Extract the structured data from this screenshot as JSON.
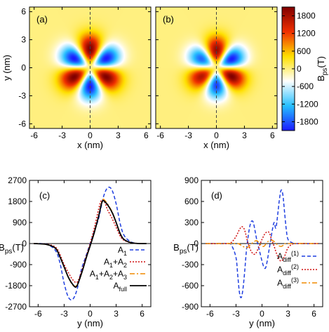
{
  "chart_data": [
    {
      "type": "heatmap",
      "panel_label": "(a)",
      "xlabel": "x (nm)",
      "ylabel": "y (nm)",
      "xlim": [
        -6.5,
        6.5
      ],
      "ylim": [
        -6.5,
        6.5
      ],
      "xticks": [
        "-6",
        "-3",
        "0",
        "3",
        "6"
      ],
      "yticks": [
        "-6",
        "-3",
        "0",
        "3",
        "6"
      ],
      "field": "Bps = A·cos(3θ)·r²·exp(-r²/w²), six-lobe pattern; positive lobes at +y, lower-left, lower-right",
      "amplitude_T": 2100,
      "lobe_radius_nm": 2.0,
      "dashed_line": "x = 0"
    },
    {
      "type": "heatmap",
      "panel_label": "(b)",
      "xlabel": "x (nm)",
      "xlim": [
        -6.5,
        6.5
      ],
      "ylim": [
        -6.5,
        6.5
      ],
      "xticks": [
        "-6",
        "-3",
        "0",
        "3",
        "6"
      ],
      "field": "same six-lobe pattern as (a), slightly asymmetric",
      "amplitude_T": 1900,
      "lobe_radius_nm": 1.9,
      "dashed_line": "x = 0"
    },
    {
      "type": "line",
      "panel_label": "(c)",
      "xlabel": "y (nm)",
      "ylabel": "B",
      "ylabel_sub": "ps",
      "ylabel_unit": "(T)",
      "xlim": [
        -7,
        7
      ],
      "ylim": [
        -2700,
        2700
      ],
      "xticks": [
        "-6",
        "-3",
        "0",
        "3",
        "6"
      ],
      "yticks": [
        "2700",
        "1800",
        "900",
        "0",
        "-900",
        "-1800",
        "-2700"
      ],
      "series": [
        {
          "name": "A1",
          "label": "A",
          "sub": "1",
          "color": "#1f3fe0",
          "dash": "5,3",
          "x": [
            -6.5,
            -5,
            -4,
            -3.5,
            -3,
            -2.5,
            -2,
            -1.5,
            -1,
            -0.5,
            0,
            0.5,
            1,
            1.5,
            2,
            2.5,
            3,
            3.5,
            4,
            5,
            6.5
          ],
          "y": [
            0,
            -30,
            -300,
            -800,
            -1700,
            -2300,
            -2380,
            -1950,
            -1100,
            -550,
            0,
            550,
            1100,
            1950,
            2380,
            2300,
            1700,
            800,
            300,
            30,
            0
          ]
        },
        {
          "name": "A1+A2",
          "label": "A",
          "sub": "1",
          "sub2": "2",
          "color": "#d01010",
          "dash": "2,2",
          "x": [
            -6.5,
            -5,
            -4,
            -3.5,
            -3,
            -2.5,
            -2,
            -1.5,
            -1,
            -0.5,
            0,
            0.5,
            1,
            1.3,
            1.7,
            2,
            2.5,
            3,
            3.5,
            4,
            5,
            6.5
          ],
          "y": [
            0,
            -30,
            -150,
            -450,
            -900,
            -1250,
            -1550,
            -1650,
            -1200,
            -600,
            0,
            700,
            1500,
            1850,
            1750,
            1450,
            1100,
            700,
            300,
            120,
            20,
            0
          ]
        },
        {
          "name": "A1+A2+A3",
          "label": "A",
          "sub": "1",
          "sub2": "2",
          "sub3": "3",
          "color": "#f08a00",
          "dash": "7,3,2,3",
          "x": [
            -6.5,
            -5,
            -4,
            -3.5,
            -3,
            -2.5,
            -2,
            -1.6,
            -1.2,
            -0.8,
            -0.4,
            0,
            0.5,
            1,
            1.4,
            1.8,
            2.2,
            2.6,
            3,
            3.5,
            4,
            5,
            6.5
          ],
          "y": [
            0,
            -40,
            -200,
            -550,
            -1000,
            -1450,
            -1780,
            -1800,
            -1500,
            -1050,
            -550,
            -100,
            500,
            1200,
            1850,
            1800,
            1580,
            1300,
            900,
            400,
            150,
            20,
            0
          ]
        },
        {
          "name": "Afull",
          "label": "A",
          "sub": "full",
          "color": "#000000",
          "dash": "",
          "x": [
            -6.5,
            -5,
            -4,
            -3.5,
            -3,
            -2.5,
            -2,
            -1.6,
            -1.2,
            -0.8,
            -0.4,
            0,
            0.5,
            1,
            1.4,
            1.8,
            2.2,
            2.6,
            3,
            3.5,
            4,
            5,
            6.5
          ],
          "y": [
            0,
            -40,
            -200,
            -550,
            -1000,
            -1450,
            -1750,
            -1850,
            -1500,
            -1050,
            -550,
            -100,
            500,
            1200,
            1800,
            1750,
            1550,
            1280,
            900,
            400,
            150,
            20,
            0
          ]
        }
      ],
      "legend_placement": "bottom-right"
    },
    {
      "type": "line",
      "panel_label": "(d)",
      "xlabel": "y (nm)",
      "ylabel": "B",
      "ylabel_sub": "ps",
      "ylabel_unit": "(T)",
      "xlim": [
        -7,
        7
      ],
      "ylim": [
        -900,
        900
      ],
      "xticks": [
        "-6",
        "-3",
        "0",
        "3",
        "6"
      ],
      "yticks": [
        "900",
        "600",
        "300",
        "0",
        "-300",
        "-600",
        "-900"
      ],
      "series": [
        {
          "name": "Adiff(1)",
          "label": "A",
          "sub": "diff",
          "sup": "(1)",
          "color": "#1f3fe0",
          "dash": "5,3",
          "x": [
            -6.5,
            -4,
            -3.5,
            -3,
            -2.8,
            -2.6,
            -2.4,
            -2.2,
            -2,
            -1.8,
            -1.6,
            -1.4,
            -1.2,
            -1,
            -0.8,
            -0.6,
            -0.4,
            -0.2,
            0,
            0.2,
            0.4,
            0.6,
            0.8,
            1,
            1.2,
            1.4,
            1.6,
            1.8,
            2,
            2.2,
            2.4,
            2.6,
            2.8,
            3,
            3.5,
            4,
            6.5
          ],
          "y": [
            0,
            0,
            -30,
            -200,
            -450,
            -700,
            -770,
            -650,
            -400,
            -100,
            100,
            250,
            320,
            300,
            180,
            50,
            -50,
            -150,
            -250,
            -330,
            -350,
            -250,
            -100,
            50,
            200,
            300,
            220,
            400,
            620,
            760,
            700,
            450,
            200,
            60,
            10,
            0,
            0
          ]
        },
        {
          "name": "Adiff(2)",
          "label": "A",
          "sub": "diff",
          "sup": "(2)",
          "color": "#d01010",
          "dash": "2,2",
          "x": [
            -6.5,
            -4,
            -3.5,
            -3,
            -2.6,
            -2.3,
            -2,
            -1.6,
            -1.2,
            -0.8,
            -0.4,
            0,
            0.4,
            0.8,
            1.1,
            1.4,
            1.8,
            2.2,
            2.6,
            3,
            3.5,
            4,
            6.5
          ],
          "y": [
            0,
            0,
            20,
            100,
            200,
            240,
            190,
            0,
            -120,
            -150,
            -60,
            60,
            150,
            160,
            60,
            -40,
            -180,
            -250,
            -180,
            -60,
            -10,
            0,
            0
          ]
        },
        {
          "name": "Adiff(3)",
          "label": "A",
          "sub": "diff",
          "sup": "(3)",
          "color": "#f08a00",
          "dash": "7,3,2,3",
          "x": [
            -6.5,
            -3,
            -2.6,
            -2.2,
            -1.8,
            -1.4,
            -1,
            -0.6,
            -0.2,
            0.2,
            0.6,
            1,
            1.4,
            1.8,
            2.2,
            2.6,
            3,
            6.5
          ],
          "y": [
            0,
            0,
            -10,
            -40,
            -60,
            -30,
            20,
            40,
            -10,
            -40,
            20,
            50,
            30,
            -20,
            -40,
            -15,
            0,
            0
          ]
        }
      ],
      "legend_placement": "bottom-right"
    }
  ],
  "colorbar": {
    "label": "B",
    "label_sub": "ps",
    "label_unit": "(T)",
    "range": [
      -2100,
      2100
    ],
    "ticks": [
      "1800",
      "1200",
      "600",
      "0",
      "-600",
      "-1200",
      "-1800"
    ],
    "tick_values": [
      1800,
      1200,
      600,
      0,
      -600,
      -1200,
      -1800
    ],
    "colors": [
      "#1a1aff",
      "#27c0ff",
      "#ffffff",
      "#ffe000",
      "#f03000",
      "#800000"
    ]
  }
}
